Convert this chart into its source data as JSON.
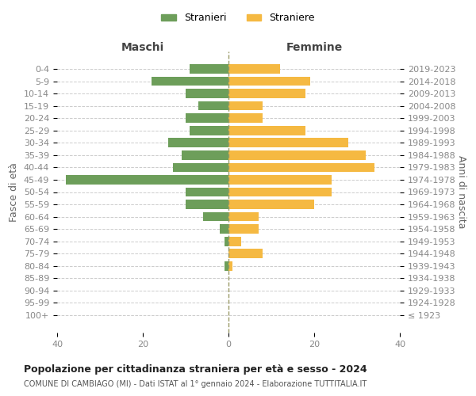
{
  "age_groups": [
    "100+",
    "95-99",
    "90-94",
    "85-89",
    "80-84",
    "75-79",
    "70-74",
    "65-69",
    "60-64",
    "55-59",
    "50-54",
    "45-49",
    "40-44",
    "35-39",
    "30-34",
    "25-29",
    "20-24",
    "15-19",
    "10-14",
    "5-9",
    "0-4"
  ],
  "birth_years": [
    "≤ 1923",
    "1924-1928",
    "1929-1933",
    "1934-1938",
    "1939-1943",
    "1944-1948",
    "1949-1953",
    "1954-1958",
    "1959-1963",
    "1964-1968",
    "1969-1973",
    "1974-1978",
    "1979-1983",
    "1984-1988",
    "1989-1993",
    "1994-1998",
    "1999-2003",
    "2004-2008",
    "2009-2013",
    "2014-2018",
    "2019-2023"
  ],
  "maschi": [
    0,
    0,
    0,
    0,
    1,
    0,
    1,
    2,
    6,
    10,
    10,
    38,
    13,
    11,
    14,
    9,
    10,
    7,
    10,
    18,
    9
  ],
  "femmine": [
    0,
    0,
    0,
    0,
    1,
    8,
    3,
    7,
    7,
    20,
    24,
    24,
    34,
    32,
    28,
    18,
    8,
    8,
    18,
    19,
    12
  ],
  "maschi_color": "#6d9e5a",
  "femmine_color": "#f5b942",
  "title": "Popolazione per cittadinanza straniera per età e sesso - 2024",
  "subtitle": "COMUNE DI CAMBIAGO (MI) - Dati ISTAT al 1° gennaio 2024 - Elaborazione TUTTITALIA.IT",
  "xlabel_left": "Maschi",
  "xlabel_right": "Femmine",
  "ylabel_left": "Fasce di età",
  "ylabel_right": "Anni di nascita",
  "xlim": 40,
  "legend_maschi": "Stranieri",
  "legend_femmine": "Straniere",
  "bg_color": "#ffffff",
  "grid_color": "#cccccc"
}
